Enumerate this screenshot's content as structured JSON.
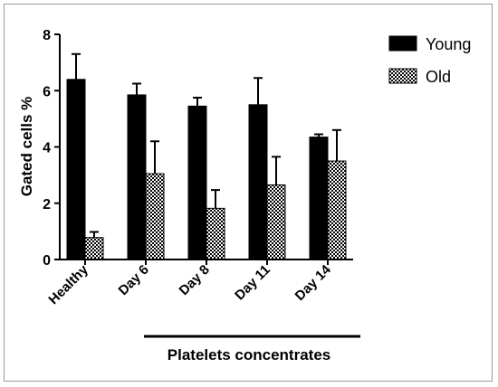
{
  "chart_data": {
    "type": "bar",
    "title": "",
    "xlabel": "Platelets concentrates",
    "ylabel": "Gated cells %",
    "ylim": [
      0,
      8
    ],
    "yticks": [
      0,
      2,
      4,
      6,
      8
    ],
    "categories": [
      "Healthy",
      "Day 6",
      "Day 8",
      "Day 11",
      "Day 14"
    ],
    "series": [
      {
        "name": "Young",
        "values": [
          6.4,
          5.85,
          5.45,
          5.5,
          4.35
        ],
        "errors": [
          0.9,
          0.4,
          0.3,
          0.95,
          0.1
        ],
        "color": "#000000",
        "pattern": "solid"
      },
      {
        "name": "Old",
        "values": [
          0.78,
          3.05,
          1.82,
          2.65,
          3.5
        ],
        "errors": [
          0.2,
          1.15,
          0.65,
          1.0,
          1.1
        ],
        "color": "#000000",
        "pattern": "checkerboard"
      }
    ],
    "legend_position": "top-right",
    "grid": false
  }
}
